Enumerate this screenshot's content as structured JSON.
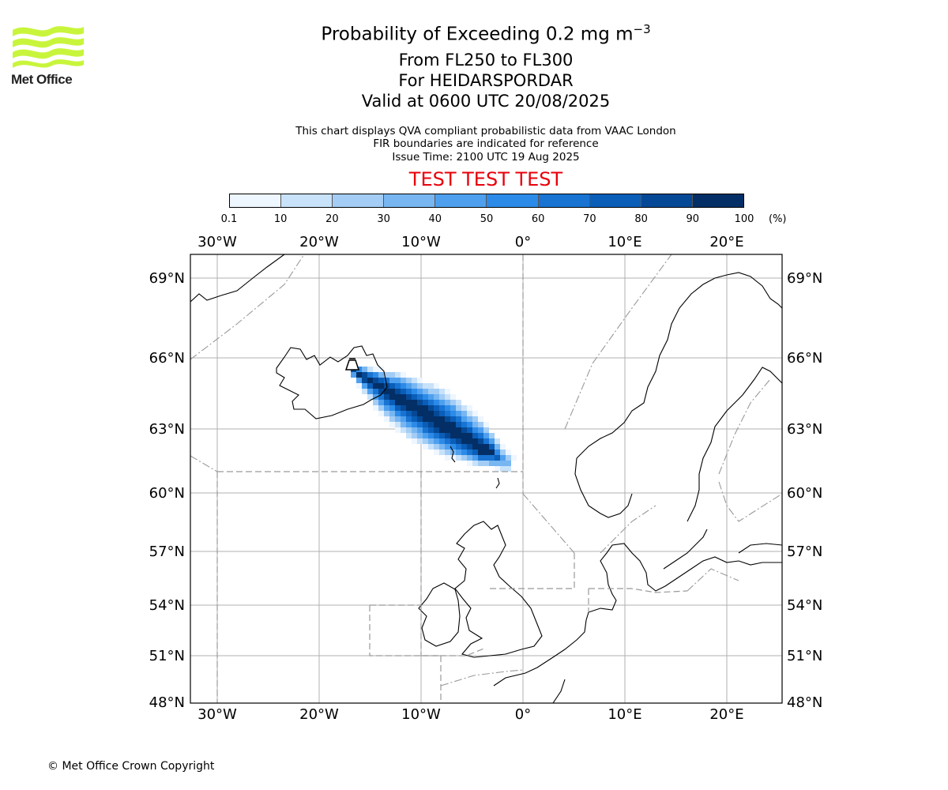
{
  "header": {
    "title_prefix": "Probability of Exceeding 0.2 mg m",
    "title_sup": "−3",
    "subtitle_levels": "From FL250 to FL300",
    "subtitle_volcano": "For HEIDARSPORDAR",
    "subtitle_valid": "Valid at 0600 UTC 20/08/2025",
    "info_1": "This chart displays QVA compliant probabilistic data from VAAC London",
    "info_2": "FIR boundaries are indicated for reference",
    "info_3": "Issue Time: 2100 UTC 19 Aug 2025",
    "test_banner": "TEST TEST TEST"
  },
  "logo": {
    "text": "Met Office",
    "color": "#c8f53c",
    "icon": "met-office-wave-logo"
  },
  "colorbar": {
    "tick_labels": [
      "0.1",
      "10",
      "20",
      "30",
      "40",
      "50",
      "60",
      "70",
      "80",
      "90",
      "100"
    ],
    "unit": "(%)",
    "colors": [
      "#eef6ff",
      "#c8e2fa",
      "#a3cdf5",
      "#78b6f2",
      "#4ea0ee",
      "#2c8be8",
      "#1873d2",
      "#0a5eb8",
      "#054996",
      "#032f66"
    ]
  },
  "map": {
    "lon_labels": [
      "30°W",
      "20°W",
      "10°W",
      "0°",
      "10°E",
      "20°E"
    ],
    "lat_labels": [
      "69°N",
      "66°N",
      "63°N",
      "60°N",
      "57°N",
      "54°N",
      "51°N",
      "48°N"
    ],
    "volcano_icon": "volcano-icon"
  },
  "footer": {
    "copyright": "© Met Office Crown Copyright"
  }
}
